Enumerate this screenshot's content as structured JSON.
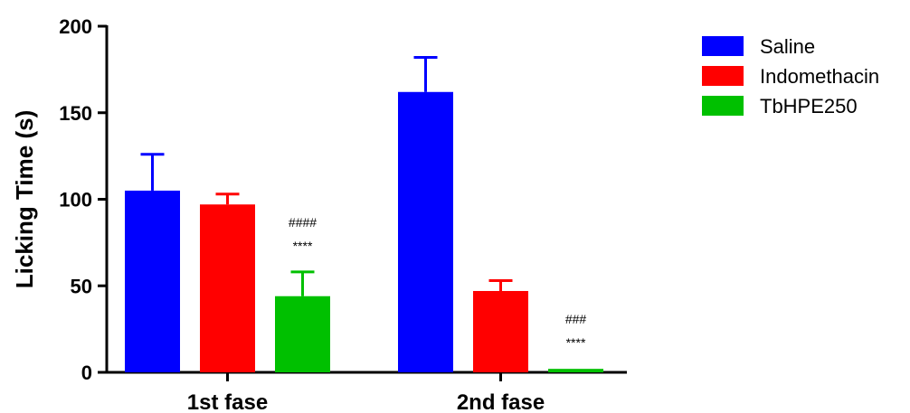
{
  "chart_data": {
    "type": "bar",
    "ylabel": "Licking Time (s)",
    "ylim": [
      0,
      200
    ],
    "yticks": [
      0,
      50,
      100,
      150,
      200
    ],
    "categories": [
      "1st fase",
      "2nd fase"
    ],
    "series": [
      {
        "name": "Saline",
        "color": "#0000ff",
        "values": [
          105,
          162
        ],
        "errors": [
          21,
          20
        ]
      },
      {
        "name": "Indomethacin",
        "color": "#ff0000",
        "values": [
          97,
          47
        ],
        "errors": [
          6,
          6
        ]
      },
      {
        "name": "TbHPE250",
        "color": "#00c000",
        "values": [
          44,
          2
        ],
        "errors": [
          14,
          0
        ]
      }
    ],
    "annotations": [
      {
        "category": 0,
        "series": 2,
        "lines": [
          "####",
          "****"
        ]
      },
      {
        "category": 1,
        "series": 2,
        "lines": [
          "###",
          "****"
        ]
      }
    ],
    "legend_position": "top-right",
    "grid": false
  }
}
